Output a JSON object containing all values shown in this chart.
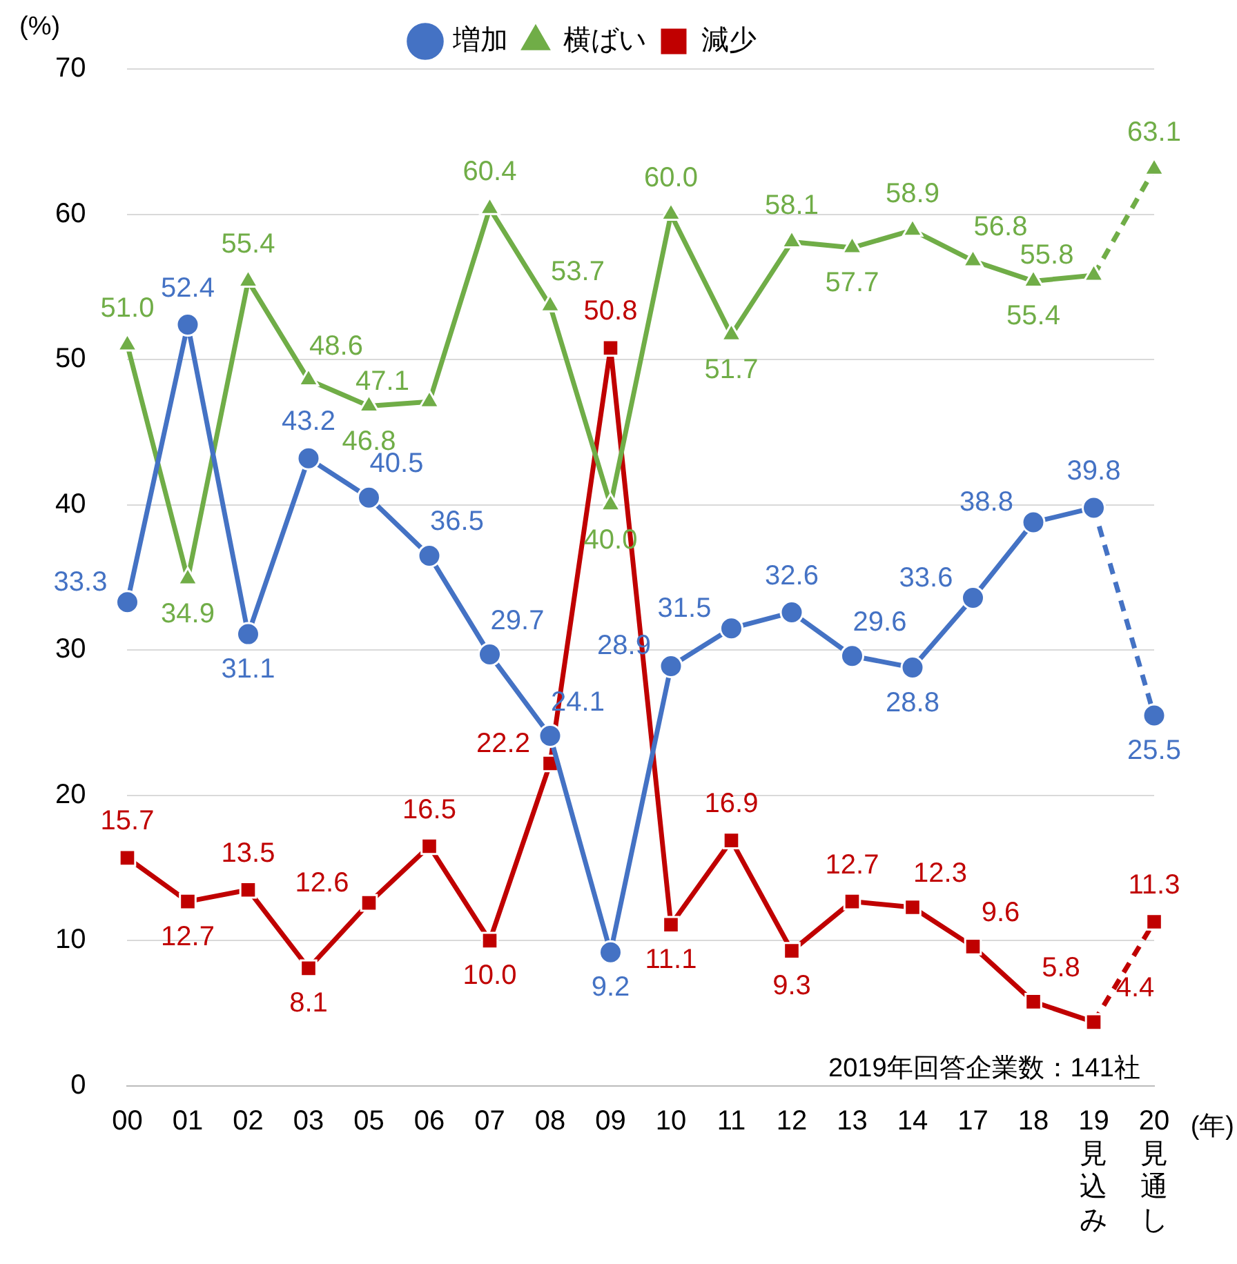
{
  "chart_data": {
    "type": "line",
    "ylabel": "(%)",
    "xlabel": "(年)",
    "categories": [
      "00",
      "01",
      "02",
      "03",
      "05",
      "06",
      "07",
      "08",
      "09",
      "10",
      "11",
      "12",
      "13",
      "14",
      "17",
      "18",
      "19見込み",
      "20見通し"
    ],
    "series": [
      {
        "name": "増加",
        "color": "#4472c4",
        "marker": "circle",
        "line_style": "solid",
        "values": [
          33.3,
          52.4,
          31.1,
          43.2,
          40.5,
          36.5,
          29.7,
          24.1,
          9.2,
          28.9,
          31.5,
          32.6,
          29.6,
          28.8,
          33.6,
          38.8,
          39.8,
          null
        ],
        "value_labels": [
          "33.3",
          "52.4",
          "31.1",
          "43.2",
          "40.5",
          "36.5",
          "29.7",
          "24.1",
          "9.2",
          "28.9",
          "31.5",
          "32.6",
          "29.6",
          "28.8",
          "33.6",
          "38.8",
          "39.8",
          null
        ]
      },
      {
        "name": "横ばい",
        "color": "#70ad47",
        "marker": "triangle",
        "line_style": "solid",
        "values": [
          51.0,
          34.9,
          55.4,
          48.6,
          46.8,
          47.1,
          60.4,
          53.7,
          40.0,
          60.0,
          51.7,
          58.1,
          57.7,
          58.9,
          56.8,
          55.4,
          55.8,
          null
        ],
        "value_labels": [
          "51.0",
          "34.9",
          "55.4",
          "48.6",
          "46.8",
          "47.1",
          "60.4",
          "53.7",
          "40.0",
          "60.0",
          "51.7",
          "58.1",
          "57.7",
          "58.9",
          "56.8",
          "55.4",
          "55.8",
          null
        ]
      },
      {
        "name": "減少",
        "color": "#c00000",
        "marker": "square",
        "line_style": "solid",
        "values": [
          15.7,
          12.7,
          13.5,
          8.1,
          12.6,
          16.5,
          10.0,
          22.2,
          50.8,
          11.1,
          16.9,
          9.3,
          12.7,
          12.3,
          9.6,
          5.8,
          4.4,
          null
        ],
        "value_labels": [
          "15.7",
          "12.7",
          "13.5",
          "8.1",
          "12.6",
          "16.5",
          "10.0",
          "22.2",
          "50.8",
          "11.1",
          "16.9",
          "9.3",
          "12.7",
          "12.3",
          "9.6",
          "5.8",
          "4.4",
          null
        ]
      },
      {
        "color": "#4472c4",
        "marker": "circle",
        "line_style": "dashed",
        "values": [
          null,
          null,
          null,
          null,
          null,
          null,
          null,
          null,
          null,
          null,
          null,
          null,
          null,
          null,
          null,
          null,
          39.8,
          25.5
        ],
        "value_labels": [
          null,
          null,
          null,
          null,
          null,
          null,
          null,
          null,
          null,
          null,
          null,
          null,
          null,
          null,
          null,
          null,
          null,
          "25.5"
        ]
      },
      {
        "color": "#70ad47",
        "marker": "triangle",
        "line_style": "dashed",
        "values": [
          null,
          null,
          null,
          null,
          null,
          null,
          null,
          null,
          null,
          null,
          null,
          null,
          null,
          null,
          null,
          null,
          55.8,
          63.1
        ],
        "value_labels": [
          null,
          null,
          null,
          null,
          null,
          null,
          null,
          null,
          null,
          null,
          null,
          null,
          null,
          null,
          null,
          null,
          null,
          "63.1"
        ]
      },
      {
        "color": "#c00000",
        "marker": "square",
        "line_style": "dashed",
        "values": [
          null,
          null,
          null,
          null,
          null,
          null,
          null,
          null,
          null,
          null,
          null,
          null,
          null,
          null,
          null,
          null,
          4.4,
          11.3
        ],
        "value_labels": [
          null,
          null,
          null,
          null,
          null,
          null,
          null,
          null,
          null,
          null,
          null,
          null,
          null,
          null,
          null,
          null,
          null,
          "11.3"
        ]
      }
    ],
    "ylim": [
      0,
      70
    ],
    "yticks": [
      0,
      10,
      20,
      30,
      40,
      50,
      60,
      70
    ],
    "grid": "y",
    "legend": "top",
    "annotations": [
      "2019年回答企業数：141社"
    ]
  }
}
